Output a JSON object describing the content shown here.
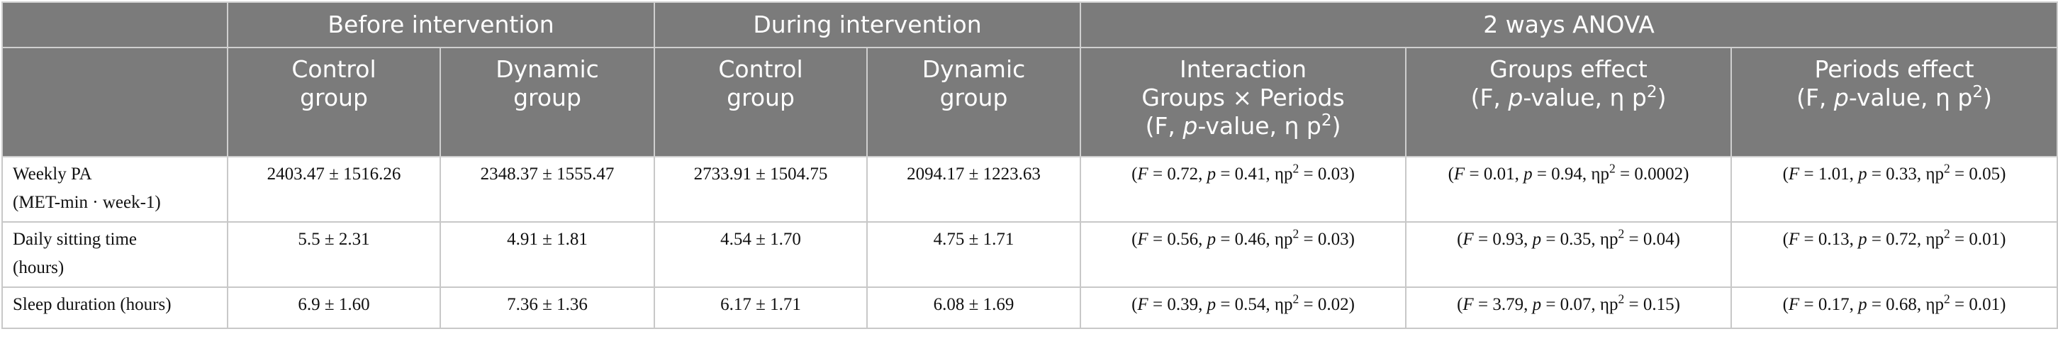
{
  "header": {
    "before": "Before intervention",
    "during": "During intervention",
    "anova": "2 ways ANOVA",
    "control_l1": "Control",
    "control_l2": "group",
    "dynamic_l1": "Dynamic",
    "dynamic_l2": "group",
    "interaction_l1": "Interaction",
    "interaction_l2": "Groups × Periods",
    "groups_l1": "Groups effect",
    "periods_l1": "Periods effect",
    "stat_open": "(F, ",
    "stat_p": "p",
    "stat_mid": "-value, η p",
    "stat_sup": "2",
    "stat_close": ")"
  },
  "rows": [
    {
      "label1": "Weekly PA",
      "label2": "(MET-min · week-1)",
      "before_control": "2403.47 ± 1516.26",
      "before_dynamic": "2348.37 ± 1555.47",
      "during_control": "2733.91 ± 1504.75",
      "during_dynamic": "2094.17 ± 1223.63",
      "inter": {
        "F": "0.72",
        "p": "0.41",
        "eta": "0.03"
      },
      "groups": {
        "F": "0.01",
        "p": "0.94",
        "eta": "0.0002"
      },
      "periods": {
        "F": "1.01",
        "p": "0.33",
        "eta": "0.05"
      }
    },
    {
      "label1": "Daily sitting time",
      "label2": "(hours)",
      "before_control": "5.5 ± 2.31",
      "before_dynamic": "4.91 ± 1.81",
      "during_control": "4.54 ± 1.70",
      "during_dynamic": "4.75 ± 1.71",
      "inter": {
        "F": "0.56",
        "p": "0.46",
        "eta": "0.03"
      },
      "groups": {
        "F": "0.93",
        "p": "0.35",
        "eta": "0.04"
      },
      "periods": {
        "F": "0.13",
        "p": "0.72",
        "eta": "0.01"
      }
    },
    {
      "label1": "Sleep duration (hours)",
      "before_control": "6.9 ± 1.60",
      "before_dynamic": "7.36 ± 1.36",
      "during_control": "6.17 ± 1.71",
      "during_dynamic": "6.08 ± 1.69",
      "inter": {
        "F": "0.39",
        "p": "0.54",
        "eta": "0.02"
      },
      "groups": {
        "F": "3.79",
        "p": "0.07",
        "eta": "0.15"
      },
      "periods": {
        "F": "0.17",
        "p": "0.68",
        "eta": "0.01"
      }
    }
  ],
  "stat_text": {
    "open": "(",
    "F": "F",
    "eq": " = ",
    "sep": ", ",
    "p": "p",
    "eta": "ηp",
    "sup": "2",
    "close": ")"
  }
}
